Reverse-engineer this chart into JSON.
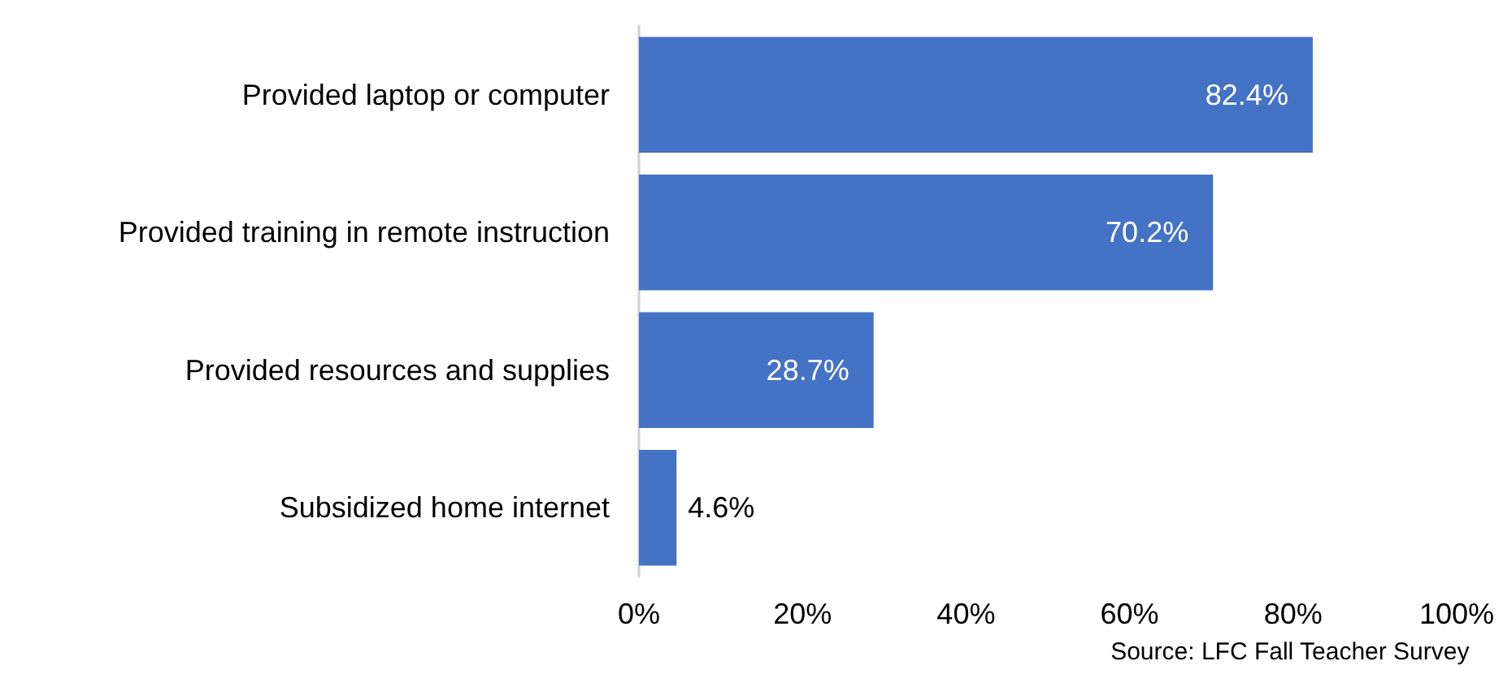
{
  "chart_data": {
    "type": "bar",
    "orientation": "horizontal",
    "categories": [
      "Provided laptop or computer",
      "Provided training in remote instruction",
      "Provided resources and supplies",
      "Subsidized home internet"
    ],
    "values": [
      82.4,
      70.2,
      28.7,
      4.6
    ],
    "value_labels": [
      "82.4%",
      "70.2%",
      "28.7%",
      "4.6%"
    ],
    "color": "#4472c4",
    "xlim": [
      0,
      100
    ],
    "xticks": [
      {
        "value": 0,
        "label": "0%"
      },
      {
        "value": 20,
        "label": "20%"
      },
      {
        "value": 40,
        "label": "40%"
      },
      {
        "value": 60,
        "label": "60%"
      },
      {
        "value": 80,
        "label": "80%"
      },
      {
        "value": 100,
        "label": "100%"
      }
    ],
    "grid": false,
    "annotations": [
      "Source: LFC Fall Teacher Survey"
    ]
  }
}
